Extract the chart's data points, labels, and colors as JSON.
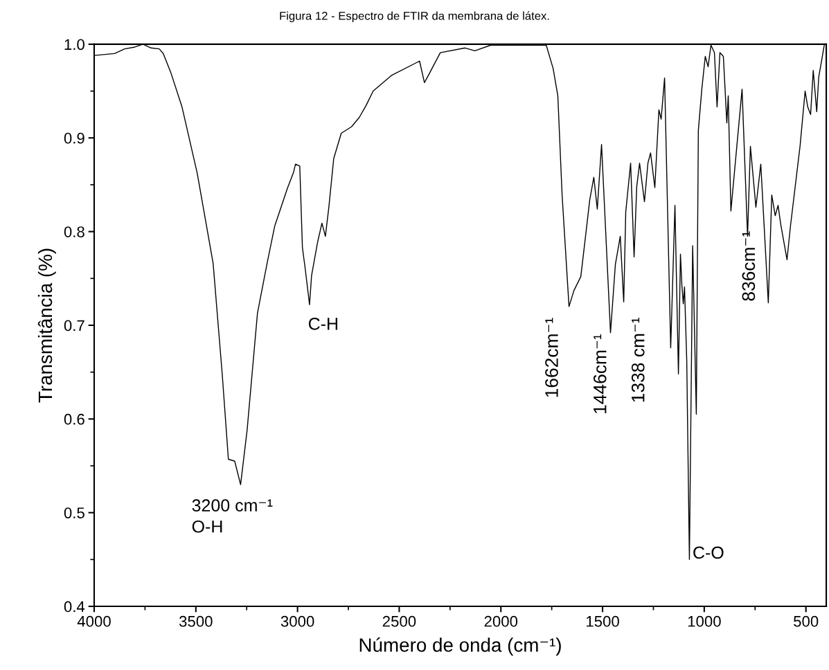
{
  "chart_data": {
    "type": "line",
    "title": "Figura 12 - Espectro de FTIR da membrana de látex.",
    "xlabel": "Número de onda (cm⁻¹)",
    "ylabel": "Transmitância (%)",
    "xlim": [
      4000,
      400
    ],
    "xticks": [
      4000,
      3500,
      3000,
      2500,
      2000,
      1500,
      1000,
      500
    ],
    "ylim": [
      0.4,
      1.0
    ],
    "yticks": [
      0.4,
      0.5,
      0.6,
      0.7,
      0.8,
      0.9,
      {
        "value": 1,
        "label": "1.0"
      }
    ],
    "grid": false,
    "legend": false,
    "marker": "none",
    "line_style": "solid",
    "series": [
      {
        "color": "#000000",
        "x": [
          4000,
          3900,
          3850,
          3800,
          3760,
          3720,
          3680,
          3660,
          3622,
          3568,
          3493,
          3415,
          3370,
          3340,
          3309,
          3280,
          3248,
          3197,
          3149,
          3112,
          3050,
          3020,
          3010,
          2989,
          2976,
          2962,
          2941,
          2931,
          2901,
          2880,
          2863,
          2846,
          2822,
          2785,
          2734,
          2696,
          2662,
          2628,
          2536,
          2400,
          2376,
          2356,
          2298,
          2176,
          2128,
          2050,
          1777,
          1743,
          1720,
          1699,
          1665,
          1641,
          1607,
          1580,
          1563,
          1543,
          1526,
          1505,
          1461,
          1437,
          1413,
          1396,
          1386,
          1362,
          1345,
          1332,
          1318,
          1294,
          1277,
          1264,
          1243,
          1223,
          1212,
          1195,
          1165,
          1144,
          1127,
          1117,
          1110,
          1103,
          1097,
          1086,
          1073,
          1057,
          1039,
          1029,
          1012,
          995,
          981,
          967,
          950,
          937,
          923,
          906,
          889,
          882,
          869,
          814,
          787,
          773,
          746,
          722,
          685,
          668,
          651,
          637,
          624,
          593,
          576,
          529,
          504,
          491,
          477,
          464,
          447,
          437,
          409
        ],
        "values": [
          0.988,
          0.99,
          0.995,
          0.997,
          1.0,
          0.996,
          0.995,
          0.99,
          0.969,
          0.933,
          0.862,
          0.766,
          0.647,
          0.557,
          0.555,
          0.53,
          0.588,
          0.713,
          0.767,
          0.806,
          0.846,
          0.863,
          0.872,
          0.87,
          0.783,
          0.76,
          0.722,
          0.753,
          0.789,
          0.809,
          0.795,
          0.826,
          0.878,
          0.905,
          0.912,
          0.922,
          0.935,
          0.95,
          0.967,
          0.982,
          0.959,
          0.967,
          0.991,
          0.996,
          0.993,
          0.999,
          0.999,
          0.974,
          0.945,
          0.839,
          0.72,
          0.737,
          0.752,
          0.802,
          0.834,
          0.858,
          0.824,
          0.893,
          0.692,
          0.765,
          0.795,
          0.725,
          0.821,
          0.873,
          0.773,
          0.848,
          0.873,
          0.832,
          0.873,
          0.884,
          0.847,
          0.93,
          0.92,
          0.964,
          0.676,
          0.828,
          0.648,
          0.776,
          0.743,
          0.723,
          0.741,
          0.662,
          0.45,
          0.785,
          0.605,
          0.908,
          0.952,
          0.987,
          0.976,
          0.999,
          0.991,
          0.933,
          0.991,
          0.987,
          0.916,
          0.945,
          0.822,
          0.952,
          0.795,
          0.891,
          0.826,
          0.872,
          0.724,
          0.839,
          0.817,
          0.828,
          0.808,
          0.77,
          0.806,
          0.891,
          0.95,
          0.933,
          0.925,
          0.972,
          0.928,
          0.965,
          1.0
        ]
      }
    ],
    "annotations": [
      "3200 cm⁻¹\nO-H",
      "C-H",
      "1662cm⁻¹",
      "1446cm⁻¹",
      "1338 cm⁻¹",
      "836cm⁻¹",
      "C-O"
    ]
  }
}
